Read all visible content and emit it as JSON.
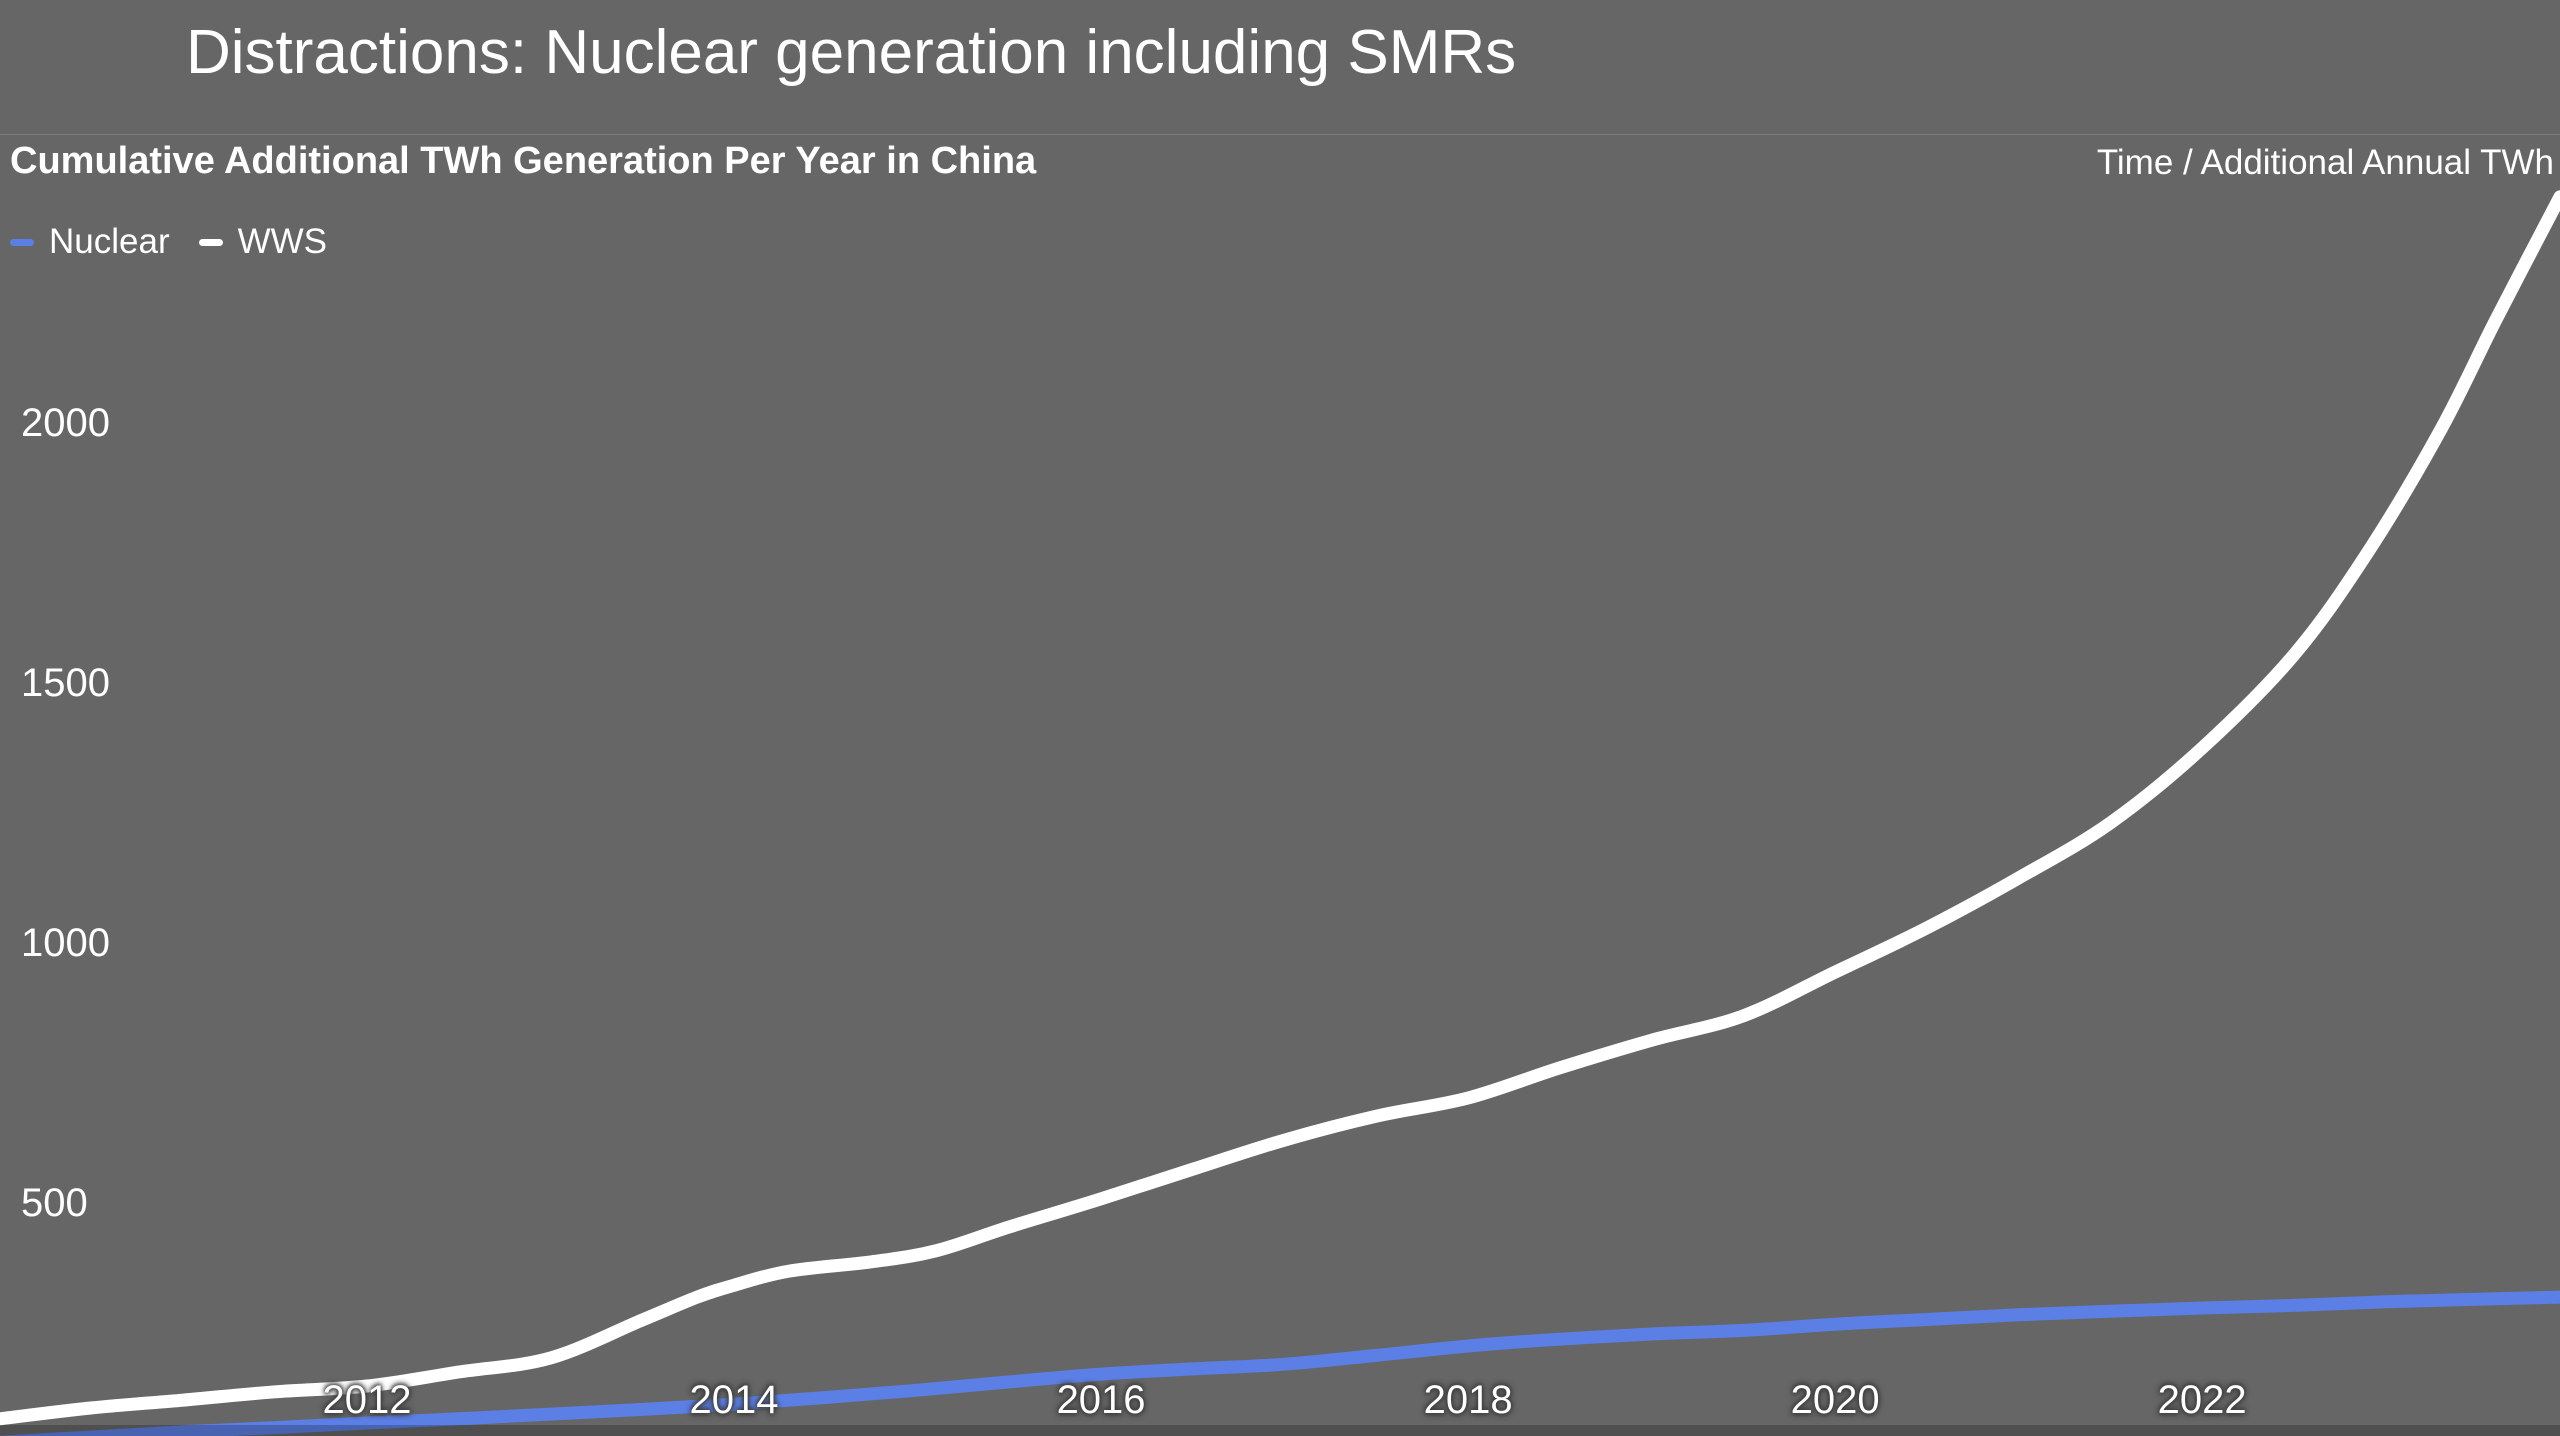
{
  "slide": {
    "title": "Distractions: Nuclear generation including SMRs"
  },
  "chart": {
    "title": "Cumulative Additional TWh Generation Per Year in China",
    "axis_note": "Time / Additional Annual TWh",
    "legend": [
      {
        "label": "Nuclear",
        "color": "#5b7fe4"
      },
      {
        "label": "WWS",
        "color": "#ffffff"
      }
    ]
  },
  "colors": {
    "background": "#666667",
    "text": "#ffffff",
    "divider": "#7c7c7c",
    "nuclear_line": "#5b7fe4",
    "wws_line": "#ffffff"
  },
  "chart_data": {
    "type": "line",
    "title": "Cumulative Additional TWh Generation Per Year in China",
    "xlabel": "Time",
    "ylabel": "Additional Annual TWh",
    "x_ticks": [
      2012,
      2014,
      2016,
      2018,
      2020,
      2022
    ],
    "y_ticks": [
      500,
      1000,
      1500,
      2000
    ],
    "xlim": [
      2010,
      2023.95
    ],
    "ylim_visible": [
      50,
      2440
    ],
    "grid": false,
    "legend_position": "top-left",
    "series": [
      {
        "name": "Nuclear",
        "color": "#5b7fe4",
        "points": [
          [
            2010,
            40
          ],
          [
            2010.5,
            50
          ],
          [
            2011,
            60
          ],
          [
            2011.5,
            68
          ],
          [
            2012,
            77
          ],
          [
            2012.5,
            85
          ],
          [
            2013,
            94
          ],
          [
            2013.5,
            103
          ],
          [
            2014,
            113
          ],
          [
            2014.5,
            126
          ],
          [
            2015,
            140
          ],
          [
            2015.5,
            156
          ],
          [
            2016,
            171
          ],
          [
            2016.5,
            181
          ],
          [
            2017,
            190
          ],
          [
            2017.5,
            207
          ],
          [
            2018,
            225
          ],
          [
            2018.4,
            236
          ],
          [
            2019,
            248
          ],
          [
            2019.5,
            255
          ],
          [
            2020,
            267
          ],
          [
            2020.5,
            276
          ],
          [
            2021,
            285
          ],
          [
            2021.5,
            292
          ],
          [
            2022,
            298
          ],
          [
            2022.5,
            303
          ],
          [
            2023,
            310
          ],
          [
            2023.5,
            315
          ],
          [
            2023.95,
            319
          ]
        ]
      },
      {
        "name": "WWS",
        "color": "#ffffff",
        "points": [
          [
            2010,
            85
          ],
          [
            2010.5,
            106
          ],
          [
            2011,
            121
          ],
          [
            2011.5,
            137
          ],
          [
            2012,
            148
          ],
          [
            2012.5,
            175
          ],
          [
            2013,
            202
          ],
          [
            2013.5,
            275
          ],
          [
            2013.8,
            319
          ],
          [
            2014,
            342
          ],
          [
            2014.3,
            369
          ],
          [
            2014.75,
            387
          ],
          [
            2015.1,
            408
          ],
          [
            2015.5,
            454
          ],
          [
            2016,
            508
          ],
          [
            2016.5,
            565
          ],
          [
            2017,
            621
          ],
          [
            2017.5,
            667
          ],
          [
            2018,
            702
          ],
          [
            2018.5,
            760
          ],
          [
            2019,
            813
          ],
          [
            2019.5,
            860
          ],
          [
            2020,
            944
          ],
          [
            2020.5,
            1029
          ],
          [
            2021,
            1125
          ],
          [
            2021.5,
            1231
          ],
          [
            2022,
            1375
          ],
          [
            2022.5,
            1554
          ],
          [
            2022.9,
            1750
          ],
          [
            2023.3,
            1987
          ],
          [
            2023.6,
            2198
          ],
          [
            2023.95,
            2435
          ]
        ]
      }
    ]
  }
}
